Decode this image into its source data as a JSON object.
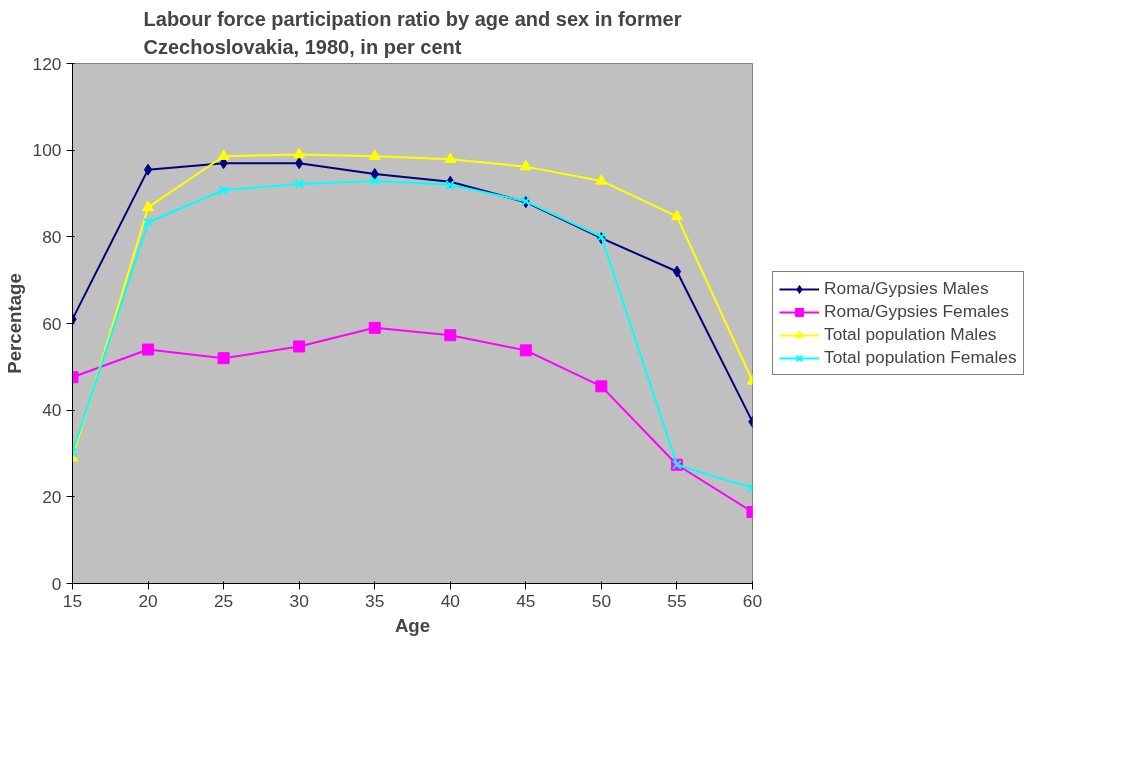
{
  "chart_data": {
    "type": "line",
    "title": "Labour force participation ratio by age and sex in former Czechoslovakia, 1980, in per cent",
    "xlabel": "Age",
    "ylabel": "Percentage",
    "x": [
      15,
      20,
      25,
      30,
      35,
      40,
      45,
      50,
      55,
      60
    ],
    "xlim": [
      15,
      60
    ],
    "xticks": [
      15,
      20,
      25,
      30,
      35,
      40,
      45,
      50,
      55,
      60
    ],
    "ylim": [
      0,
      120
    ],
    "yticks": [
      0,
      20,
      40,
      60,
      80,
      100,
      120
    ],
    "grid": false,
    "legend": "right",
    "line_style": "solid",
    "series": [
      {
        "name": "Roma/Gypsies Males",
        "color": "#000080",
        "marker": "diamond",
        "values": [
          61,
          95.5,
          97,
          97,
          94.5,
          92.7,
          88,
          79.7,
          72,
          37.3
        ]
      },
      {
        "name": "Roma/Gypsies Females",
        "color": "#ff00ff",
        "marker": "square",
        "values": [
          47.6,
          54,
          52,
          54.7,
          59,
          57.3,
          53.8,
          45.5,
          27.4,
          16.5
        ]
      },
      {
        "name": "Total population Males",
        "color": "#ffff00",
        "marker": "triangle",
        "values": [
          29,
          86.8,
          98.6,
          99,
          98.6,
          97.9,
          96.2,
          92.9,
          84.7,
          46.7
        ]
      },
      {
        "name": "Total population Females",
        "color": "#00ffff",
        "marker": "cross",
        "values": [
          30.2,
          83.3,
          90.8,
          92.2,
          92.9,
          92,
          88.2,
          80,
          27.4,
          22
        ]
      }
    ]
  }
}
